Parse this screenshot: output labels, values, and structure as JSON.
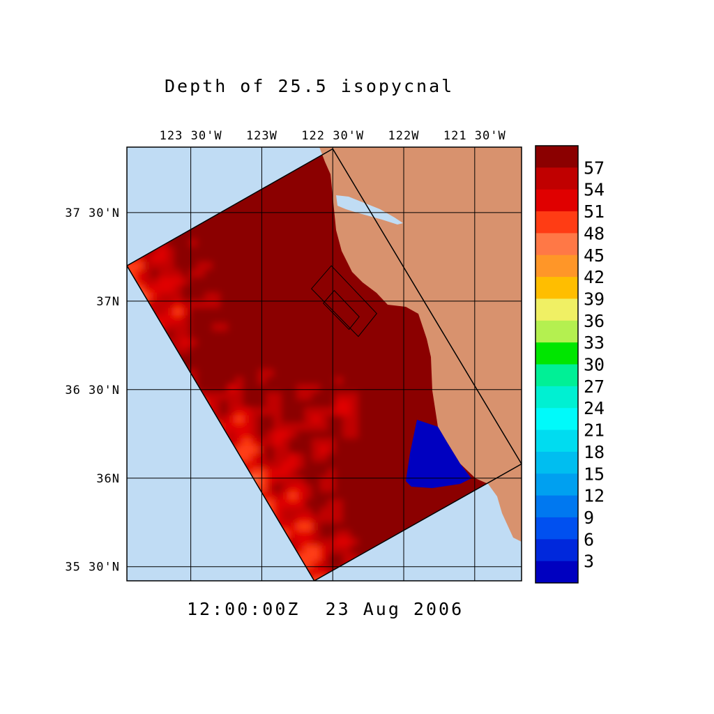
{
  "title": "Depth of 25.5 isopycnal",
  "timestamp": "12:00:00Z  23 Aug 2006",
  "map": {
    "lon_range": [
      -123.95,
      -121.17
    ],
    "lat_range": [
      35.42,
      37.87
    ],
    "lon_ticks": [
      {
        "value": -123.5,
        "label": "123 30'W"
      },
      {
        "value": -123.0,
        "label": "123W"
      },
      {
        "value": -122.5,
        "label": "122 30'W"
      },
      {
        "value": -122.0,
        "label": "122W"
      },
      {
        "value": -121.5,
        "label": "121 30'W"
      }
    ],
    "lat_ticks": [
      {
        "value": 37.5,
        "label": "37 30'N"
      },
      {
        "value": 37.0,
        "label": "37N"
      },
      {
        "value": 36.5,
        "label": "36 30'N"
      },
      {
        "value": 36.0,
        "label": "36N"
      },
      {
        "value": 35.5,
        "label": "35 30'N"
      }
    ],
    "ocean_color": "#c0dcf4",
    "land_color": "#d8926e",
    "grid_on": true,
    "domain_outer": [
      [
        -123.95,
        37.2
      ],
      [
        -122.5,
        37.86
      ],
      [
        -121.17,
        36.08
      ],
      [
        -122.63,
        35.42
      ]
    ],
    "domain_inner": [
      [
        -122.65,
        37.07
      ],
      [
        -122.51,
        37.2
      ],
      [
        -122.19,
        36.93
      ],
      [
        -122.32,
        36.8
      ]
    ]
  },
  "colorbar": {
    "labels": [
      "57",
      "54",
      "51",
      "48",
      "45",
      "42",
      "39",
      "36",
      "33",
      "30",
      "27",
      "24",
      "21",
      "18",
      "15",
      "12",
      "9",
      "6",
      "3"
    ],
    "colors": [
      "#8b0000",
      "#c00000",
      "#e00000",
      "#ff3c14",
      "#ff7846",
      "#ff9628",
      "#ffbe00",
      "#f0f064",
      "#b4f050",
      "#00e600",
      "#00f096",
      "#00f0d2",
      "#00fafa",
      "#00dcf0",
      "#00bef0",
      "#00a0f0",
      "#0078f0",
      "#0050f0",
      "#0028dc",
      "#0000c0"
    ]
  },
  "chart_data": {
    "type": "heatmap",
    "title": "Depth of 25.5 isopycnal",
    "value_range": [
      0,
      60
    ],
    "field_shown": "color-shaded depth field within rotated model domain; shallow (3) near Monterey Bay and coast, deep (45-57) along southwest offshore edge"
  }
}
